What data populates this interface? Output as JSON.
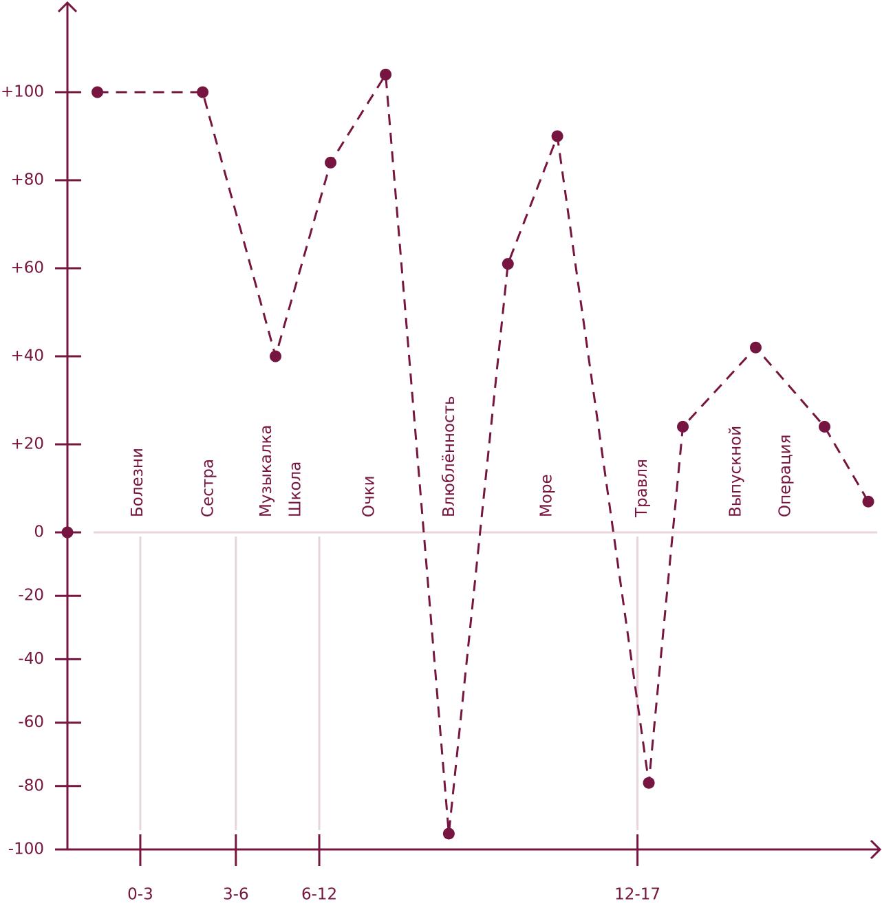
{
  "chart_data": {
    "type": "line",
    "color": "#76153f",
    "grid_color": "#e8d5dc",
    "xlim": [
      0,
      100
    ],
    "ylim": [
      -100,
      120
    ],
    "xticks": [
      {
        "value": 9.0,
        "label": "0-3"
      },
      {
        "value": 20.8,
        "label": "3-6"
      },
      {
        "value": 31.1,
        "label": "6-12"
      },
      {
        "value": 70.4,
        "label": "12-17"
      }
    ],
    "yticks": [
      {
        "value": 100,
        "label": "+100"
      },
      {
        "value": 80,
        "label": "+80"
      },
      {
        "value": 60,
        "label": "+60"
      },
      {
        "value": 40,
        "label": "+40"
      },
      {
        "value": 20,
        "label": "+20"
      },
      0,
      -20,
      -40,
      -60,
      -80,
      -100
    ],
    "series": [
      {
        "color": "#76153f",
        "line": "dashed",
        "x": [
          3.7,
          16.7,
          25.7,
          32.5,
          39.3,
          47.1,
          54.4,
          60.5,
          71.8,
          76.0,
          85.0,
          93.5,
          98.9
        ],
        "values": [
          100,
          100,
          40,
          84,
          104,
          -95,
          61,
          90,
          -79,
          24,
          42,
          24,
          7
        ]
      },
      {
        "color": "#76153f",
        "line": "none",
        "x": [
          0
        ],
        "values": [
          0
        ]
      }
    ],
    "annotations": [
      {
        "text": "Болезни",
        "x": 8.7
      },
      {
        "text": "Сестра",
        "x": 17.4
      },
      {
        "text": "Музыкалка",
        "x": 24.6
      },
      {
        "text": "Школа",
        "x": 28.2
      },
      {
        "text": "Очки",
        "x": 37.3
      },
      {
        "text": "Влюблённость",
        "x": 47.2
      },
      {
        "text": "Море",
        "x": 59.2
      },
      {
        "text": "Травля",
        "x": 71.0
      },
      {
        "text": "Выпускной",
        "x": 82.6
      },
      {
        "text": "Операция",
        "x": 88.7
      }
    ]
  }
}
